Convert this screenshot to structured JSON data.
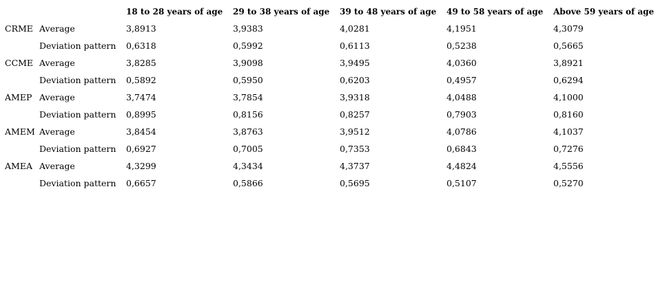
{
  "table": {
    "columns": [
      "18 to 28 years of age",
      "29 to 38 years of age",
      "39 to 48 years of age",
      "49 to 58 years of age",
      "Above 59 years of age"
    ],
    "groups": [
      {
        "name": "CRME",
        "rows": [
          {
            "label": "Average",
            "values": [
              "3,8913",
              "3,9383",
              "4,0281",
              "4,1951",
              "4,3079"
            ]
          },
          {
            "label": "Deviation pattern",
            "values": [
              "0,6318",
              "0,5992",
              "0,6113",
              "0,5238",
              "0,5665"
            ]
          }
        ]
      },
      {
        "name": "CCME",
        "rows": [
          {
            "label": "Average",
            "values": [
              "3,8285",
              "3,9098",
              "3,9495",
              "4,0360",
              "3,8921"
            ]
          },
          {
            "label": "Deviation pattern",
            "values": [
              "0,5892",
              "0,5950",
              "0,6203",
              "0,4957",
              "0,6294"
            ]
          }
        ]
      },
      {
        "name": "AMEP",
        "rows": [
          {
            "label": "Average",
            "values": [
              "3,7474",
              "3,7854",
              "3,9318",
              "4,0488",
              "4,1000"
            ]
          },
          {
            "label": "Deviation pattern",
            "values": [
              "0,8995",
              "0,8156",
              "0,8257",
              "0,7903",
              "0,8160"
            ]
          }
        ]
      },
      {
        "name": "AMEM",
        "rows": [
          {
            "label": "Average",
            "values": [
              "3,8454",
              "3,8763",
              "3,9512",
              "4,0786",
              "4,1037"
            ]
          },
          {
            "label": "Deviation pattern",
            "values": [
              "0,6927",
              "0,7005",
              "0,7353",
              "0,6843",
              "0,7276"
            ]
          }
        ]
      },
      {
        "name": "AMEA",
        "rows": [
          {
            "label": "Average",
            "values": [
              "4,3299",
              "4,3434",
              "4,3737",
              "4,4824",
              "4,5556"
            ]
          },
          {
            "label": "Deviation pattern",
            "values": [
              "0,6657",
              "0,5866",
              "0,5695",
              "0,5107",
              "0,5270"
            ]
          }
        ]
      }
    ]
  }
}
